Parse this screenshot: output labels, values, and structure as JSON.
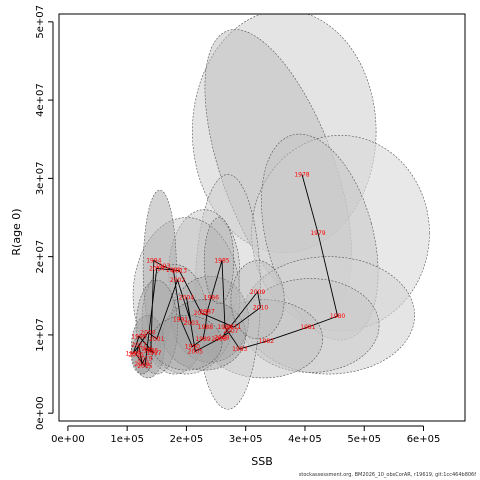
{
  "chart_data": {
    "type": "scatter",
    "title": "",
    "xlabel": "SSB",
    "ylabel": "R(age 0)",
    "xlim": [
      -15000,
      670000
    ],
    "ylim": [
      -1000000,
      51000000
    ],
    "x_ticks": [
      0,
      100000,
      200000,
      300000,
      400000,
      500000,
      600000
    ],
    "x_tick_labels": [
      "0e+00",
      "1e+05",
      "2e+05",
      "3e+05",
      "4e+05",
      "5e+05",
      "6e+05"
    ],
    "y_ticks": [
      0,
      10000000,
      20000000,
      30000000,
      40000000,
      50000000
    ],
    "y_tick_labels": [
      "0e+00",
      "1e+07",
      "2e+07",
      "3e+07",
      "4e+07",
      "5e+07"
    ],
    "grid": false,
    "legend": "none",
    "point_color": "#ff0000",
    "line_color": "#000000",
    "series": [
      {
        "points": [
          {
            "label": "1978",
            "x": 395000,
            "y": 30500000
          },
          {
            "label": "1979",
            "x": 422000,
            "y": 23000000
          },
          {
            "label": "1980",
            "x": 455000,
            "y": 12400000
          },
          {
            "label": "1981",
            "x": 405000,
            "y": 11000000
          },
          {
            "label": "1982",
            "x": 335000,
            "y": 9200000
          },
          {
            "label": "1983",
            "x": 290000,
            "y": 8200000
          },
          {
            "label": "1984",
            "x": 265000,
            "y": 11000000
          },
          {
            "label": "1985",
            "x": 260000,
            "y": 19500000
          },
          {
            "label": "1986",
            "x": 242000,
            "y": 14800000
          },
          {
            "label": "1987",
            "x": 235000,
            "y": 13000000
          },
          {
            "label": "1988",
            "x": 232000,
            "y": 11000000
          },
          {
            "label": "1989",
            "x": 228000,
            "y": 9500000
          },
          {
            "label": "1990",
            "x": 210000,
            "y": 8500000
          },
          {
            "label": "1991",
            "x": 190000,
            "y": 12000000
          },
          {
            "label": "1992",
            "x": 178000,
            "y": 18300000
          },
          {
            "label": "1993",
            "x": 160000,
            "y": 18800000
          },
          {
            "label": "1994",
            "x": 145000,
            "y": 19500000
          },
          {
            "label": "1995",
            "x": 140000,
            "y": 8000000
          },
          {
            "label": "1996",
            "x": 130000,
            "y": 8200000
          },
          {
            "label": "1997",
            "x": 145000,
            "y": 7700000
          },
          {
            "label": "1998",
            "x": 120000,
            "y": 9800000
          },
          {
            "label": "1999",
            "x": 110000,
            "y": 7600000
          },
          {
            "label": "2000",
            "x": 135000,
            "y": 10300000
          },
          {
            "label": "2001",
            "x": 150000,
            "y": 9500000
          },
          {
            "label": "2002",
            "x": 185000,
            "y": 17000000
          },
          {
            "label": "2003",
            "x": 208000,
            "y": 11500000
          },
          {
            "label": "2004",
            "x": 200000,
            "y": 14800000
          },
          {
            "label": "2005",
            "x": 215000,
            "y": 7900000
          },
          {
            "label": "2006",
            "x": 255000,
            "y": 9500000
          },
          {
            "label": "2007",
            "x": 275000,
            "y": 10500000
          },
          {
            "label": "2008",
            "x": 260000,
            "y": 9700000
          },
          {
            "label": "2009",
            "x": 320000,
            "y": 15500000
          },
          {
            "label": "2010",
            "x": 325000,
            "y": 13500000
          },
          {
            "label": "2011",
            "x": 280000,
            "y": 11000000
          },
          {
            "label": "2012",
            "x": 225000,
            "y": 12800000
          },
          {
            "label": "2013",
            "x": 188000,
            "y": 18200000
          },
          {
            "label": "2014",
            "x": 150000,
            "y": 18500000
          },
          {
            "label": "2015",
            "x": 130000,
            "y": 6000000
          },
          {
            "label": "2016",
            "x": 115000,
            "y": 7500000
          },
          {
            "label": "2017",
            "x": 120000,
            "y": 8700000
          },
          {
            "label": "2018",
            "x": 125000,
            "y": 6300000
          },
          {
            "label": "2019",
            "x": 130000,
            "y": 7000000
          }
        ]
      }
    ],
    "ellipses": [
      {
        "cx": 365000,
        "cy": 36000000,
        "rx": 155000,
        "ry": 15500000,
        "angle": 0,
        "fill": "#d8d8d8",
        "opacity": 0.7
      },
      {
        "cx": 355000,
        "cy": 31000000,
        "rx": 95000,
        "ry": 19000000,
        "angle": -20,
        "fill": "#bcbcbc",
        "opacity": 0.5
      },
      {
        "cx": 460000,
        "cy": 23000000,
        "rx": 150000,
        "ry": 12500000,
        "angle": 0,
        "fill": "#d8d8d8",
        "opacity": 0.6
      },
      {
        "cx": 425000,
        "cy": 22500000,
        "rx": 90000,
        "ry": 13500000,
        "angle": -15,
        "fill": "#c4c4c4",
        "opacity": 0.5
      },
      {
        "cx": 440000,
        "cy": 12500000,
        "rx": 145000,
        "ry": 7500000,
        "angle": 0,
        "fill": "#d4d4d4",
        "opacity": 0.6
      },
      {
        "cx": 410000,
        "cy": 11200000,
        "rx": 115000,
        "ry": 6000000,
        "angle": 0,
        "fill": "#c8c8c8",
        "opacity": 0.5
      },
      {
        "cx": 330000,
        "cy": 9500000,
        "rx": 100000,
        "ry": 5000000,
        "angle": 0,
        "fill": "#c0c0c0",
        "opacity": 0.5
      },
      {
        "cx": 270000,
        "cy": 15500000,
        "rx": 55000,
        "ry": 15000000,
        "angle": 0,
        "fill": "#cccccc",
        "opacity": 0.5
      },
      {
        "cx": 230000,
        "cy": 18000000,
        "rx": 60000,
        "ry": 8000000,
        "angle": 0,
        "fill": "#c6c6c6",
        "opacity": 0.5
      },
      {
        "cx": 200000,
        "cy": 15000000,
        "rx": 90000,
        "ry": 10000000,
        "angle": 0,
        "fill": "#bebebe",
        "opacity": 0.45
      },
      {
        "cx": 155000,
        "cy": 18500000,
        "rx": 28000,
        "ry": 10000000,
        "angle": 0,
        "fill": "#a8a8a8",
        "opacity": 0.5
      },
      {
        "cx": 180000,
        "cy": 12000000,
        "rx": 55000,
        "ry": 7000000,
        "angle": 0,
        "fill": "#b4b4b4",
        "opacity": 0.45
      },
      {
        "cx": 240000,
        "cy": 12000000,
        "rx": 65000,
        "ry": 5500000,
        "angle": 0,
        "fill": "#a8a8a8",
        "opacity": 0.45
      },
      {
        "cx": 230000,
        "cy": 10000000,
        "rx": 70000,
        "ry": 4500000,
        "angle": 0,
        "fill": "#a0a0a0",
        "opacity": 0.45
      },
      {
        "cx": 135000,
        "cy": 8500000,
        "rx": 28000,
        "ry": 4000000,
        "angle": 0,
        "fill": "#9c9c9c",
        "opacity": 0.5
      },
      {
        "cx": 150000,
        "cy": 11000000,
        "rx": 35000,
        "ry": 6000000,
        "angle": 0,
        "fill": "#a4a4a4",
        "opacity": 0.45
      },
      {
        "cx": 200000,
        "cy": 9000000,
        "rx": 60000,
        "ry": 3500000,
        "angle": 0,
        "fill": "#a2a2a2",
        "opacity": 0.45
      },
      {
        "cx": 125000,
        "cy": 7500000,
        "rx": 18000,
        "ry": 2500000,
        "angle": 0,
        "fill": "#909090",
        "opacity": 0.5
      },
      {
        "cx": 255000,
        "cy": 19500000,
        "rx": 25000,
        "ry": 5500000,
        "angle": 0,
        "fill": "#b0b0b0",
        "opacity": 0.45
      },
      {
        "cx": 320000,
        "cy": 14500000,
        "rx": 45000,
        "ry": 5000000,
        "angle": 0,
        "fill": "#b8b8b8",
        "opacity": 0.45
      }
    ]
  },
  "footer_caption": "stockassessment.org, BM2026_10_obsCorAR, r19619, git:1cc464b806f"
}
